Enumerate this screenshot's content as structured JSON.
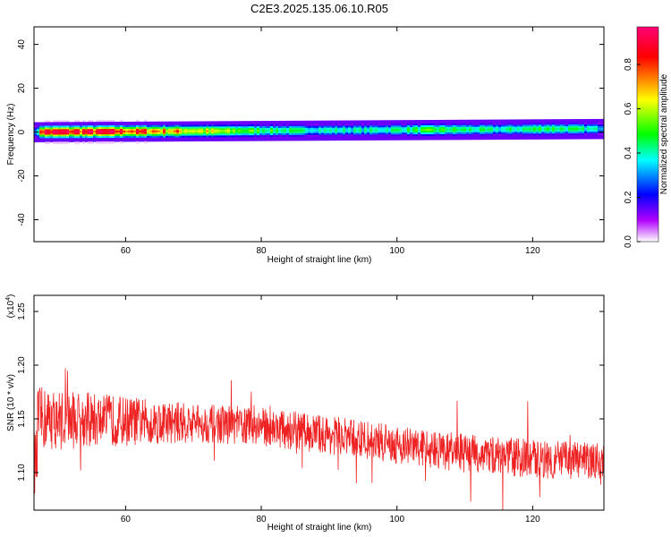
{
  "figure": {
    "title": "C2E3.2025.135.06.10.R05"
  },
  "chart_data": [
    {
      "type": "heatmap",
      "xlabel": "Height of straight line (km)",
      "ylabel": "Frequency (Hz)",
      "xlim": [
        46.5,
        130.5
      ],
      "ylim": [
        -50,
        48
      ],
      "xticks": [
        60,
        80,
        100,
        120
      ],
      "yticks": [
        40,
        20,
        0,
        -20,
        -40
      ],
      "colorbar": {
        "label": "Normalized spectral amplitude",
        "range": [
          0,
          0.97
        ],
        "ticks": [
          0.0,
          0.2,
          0.4,
          0.6,
          0.8
        ],
        "colormap": [
          "#ffffff",
          "#b000ff",
          "#0000ff",
          "#00ffff",
          "#00ff00",
          "#ffff00",
          "#ff0000",
          "#ff0077"
        ]
      },
      "band": {
        "center_hz_start": 0.0,
        "center_hz_end": 1.5,
        "amplitude_profile": [
          {
            "x": 47,
            "peak": 0.9
          },
          {
            "x": 57,
            "peak": 0.88
          },
          {
            "x": 65,
            "peak": 0.78
          },
          {
            "x": 75,
            "peak": 0.62
          },
          {
            "x": 85,
            "peak": 0.48
          },
          {
            "x": 95,
            "peak": 0.45
          },
          {
            "x": 105,
            "peak": 0.55
          },
          {
            "x": 115,
            "peak": 0.45
          },
          {
            "x": 122,
            "peak": 0.55
          },
          {
            "x": 130,
            "peak": 0.42
          }
        ]
      }
    },
    {
      "type": "line",
      "xlabel": "Height of straight line (km)",
      "ylabel": "SNR (10 * v/v)",
      "yscale_note": "(x10",
      "yscale_exp": "4",
      "xlim": [
        46.5,
        130.5
      ],
      "ylim": [
        1.065,
        1.265
      ],
      "xticks": [
        60,
        80,
        100,
        120
      ],
      "yticks": [
        1.1,
        1.15,
        1.2,
        1.25
      ],
      "color": "#ee2222",
      "trend": [
        {
          "x": 47,
          "y": 1.15
        },
        {
          "x": 60,
          "y": 1.148
        },
        {
          "x": 70,
          "y": 1.146
        },
        {
          "x": 80,
          "y": 1.143
        },
        {
          "x": 90,
          "y": 1.135
        },
        {
          "x": 100,
          "y": 1.126
        },
        {
          "x": 110,
          "y": 1.118
        },
        {
          "x": 120,
          "y": 1.113
        },
        {
          "x": 130,
          "y": 1.11
        }
      ]
    }
  ]
}
